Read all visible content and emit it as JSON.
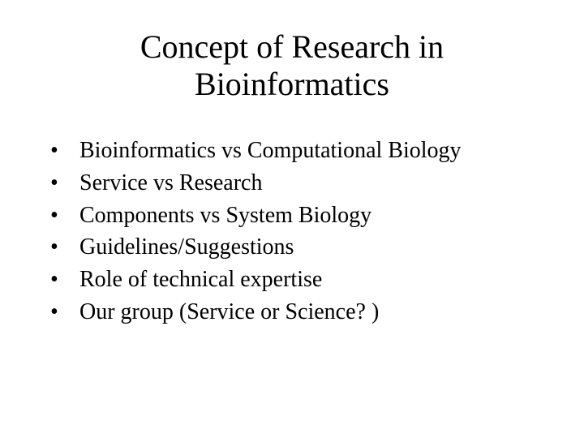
{
  "slide": {
    "title": "Concept of Research in Bioinformatics",
    "title_fontsize": 40,
    "body_fontsize": 28,
    "font_family": "Times New Roman",
    "text_color": "#000000",
    "background_color": "#ffffff",
    "bullets": [
      {
        "marker": "•",
        "text": "Bioinformatics vs Computational Biology"
      },
      {
        "marker": "•",
        "text": "Service vs Research"
      },
      {
        "marker": "•",
        "text": "Components vs System Biology"
      },
      {
        "marker": "•",
        "text": "Guidelines/Suggestions"
      },
      {
        "marker": "•",
        "text": "Role of technical expertise"
      },
      {
        "marker": "•",
        "text": "Our group (Service or Science? )"
      }
    ]
  }
}
